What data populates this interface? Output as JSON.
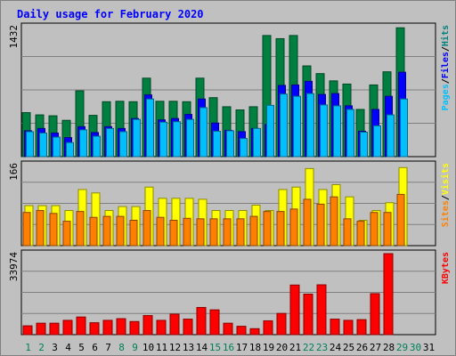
{
  "chart_data": {
    "type": "bar",
    "title": "Daily usage for February 2020",
    "categories": [
      "1",
      "2",
      "3",
      "4",
      "5",
      "6",
      "7",
      "8",
      "9",
      "10",
      "11",
      "12",
      "13",
      "14",
      "15",
      "16",
      "17",
      "18",
      "19",
      "20",
      "21",
      "22",
      "23",
      "24",
      "25",
      "26",
      "27",
      "28",
      "29",
      "30",
      "31"
    ],
    "weekend_days": [
      "1",
      "2",
      "8",
      "9",
      "15",
      "16",
      "22",
      "23",
      "29",
      "30"
    ],
    "panels": [
      {
        "id": "hits",
        "ymax_label": "1432",
        "ylim": [
          0,
          1432
        ],
        "legend": [
          "Pages",
          "/",
          "Files",
          "/",
          "Hits"
        ],
        "series": [
          {
            "name": "Hits",
            "color": "#008040",
            "values": [
              485,
              460,
              450,
              400,
              725,
              455,
              605,
              610,
              605,
              865,
              610,
              610,
              605,
              865,
              650,
              550,
              515,
              550,
              1335,
              1300,
              1335,
              1000,
              915,
              835,
              800,
              520,
              790,
              935,
              1420,
              0,
              0
            ]
          },
          {
            "name": "Files",
            "color": "#0000ff",
            "values": [
              285,
              310,
              260,
              210,
              330,
              265,
              330,
              310,
              420,
              680,
              405,
              420,
              465,
              635,
              370,
              290,
              275,
              310,
              355,
              785,
              790,
              830,
              685,
              695,
              560,
              280,
              520,
              665,
              930,
              0,
              0
            ]
          },
          {
            "name": "Pages",
            "color": "#00bfff",
            "values": [
              275,
              260,
              215,
              155,
              295,
              225,
              310,
              275,
              410,
              635,
              380,
              385,
              410,
              540,
              280,
              285,
              200,
              310,
              565,
              690,
              665,
              695,
              570,
              560,
              520,
              270,
              340,
              460,
              635,
              0,
              0
            ]
          }
        ]
      },
      {
        "id": "visits",
        "ymax_label": "166",
        "ylim": [
          0,
          166
        ],
        "legend": [
          "Sites",
          "/",
          "Visits"
        ],
        "series": [
          {
            "name": "Visits",
            "color": "#ffff00",
            "values": [
              82,
              82,
              82,
              72,
              115,
              108,
              72,
              80,
              80,
              120,
              97,
              97,
              97,
              95,
              72,
              72,
              72,
              83,
              72,
              115,
              120,
              158,
              115,
              125,
              100,
              52,
              72,
              88,
              160,
              0,
              0
            ]
          },
          {
            "name": "Sites",
            "color": "#ff8000",
            "values": [
              68,
              72,
              66,
              50,
              70,
              58,
              60,
              60,
              52,
              72,
              58,
              52,
              56,
              55,
              55,
              55,
              55,
              60,
              70,
              70,
              75,
              95,
              85,
              100,
              55,
              50,
              68,
              68,
              105,
              0,
              0
            ]
          }
        ]
      },
      {
        "id": "kbytes",
        "ymax_label": "33974",
        "ylim": [
          0,
          33974
        ],
        "legend": [
          "KBytes"
        ],
        "series": [
          {
            "name": "KBytes",
            "color": "#ff0000",
            "values": [
              3700,
              4800,
              4800,
              6000,
              7400,
              5000,
              6000,
              6700,
              5500,
              8000,
              6000,
              8600,
              6500,
              11400,
              10400,
              4800,
              3500,
              2500,
              5800,
              8900,
              20800,
              17000,
              20900,
              6500,
              6000,
              6300,
              17200,
              33974,
              0,
              0,
              0
            ]
          }
        ]
      }
    ]
  }
}
